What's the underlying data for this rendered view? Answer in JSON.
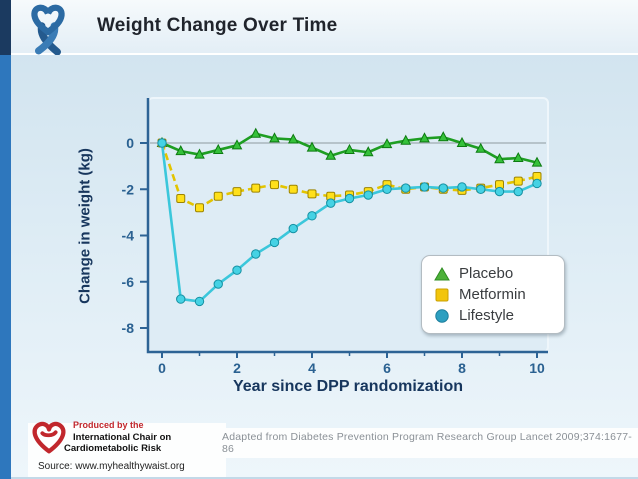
{
  "header": {
    "title": "Weight Change Over Time"
  },
  "chart_data": {
    "type": "line",
    "title": "Weight Change Over Time",
    "xlabel": "Year since DPP randomization",
    "ylabel": "Change in weight (kg)",
    "xlim": [
      0,
      10
    ],
    "ylim": [
      -8,
      0.8
    ],
    "x_ticks": [
      0,
      2,
      4,
      6,
      8,
      10
    ],
    "x_minor_ticks": [
      1,
      3,
      5,
      7,
      9
    ],
    "y_ticks": [
      0,
      -2,
      -4,
      -6,
      -8
    ],
    "grid": "zero-line-only",
    "legend_position": "bottom-right",
    "x": [
      0,
      0.5,
      1,
      1.5,
      2,
      2.5,
      3,
      3.5,
      4,
      4.5,
      5,
      5.5,
      6,
      6.5,
      7,
      7.5,
      8,
      8.5,
      9,
      9.5,
      10
    ],
    "series": [
      {
        "name": "Placebo",
        "marker": "triangle",
        "color": "#1e9e22",
        "marker_fill": "#35c13a",
        "marker_stroke": "#0c7a10",
        "dash": "",
        "values": [
          0,
          -0.35,
          -0.5,
          -0.3,
          -0.1,
          0.4,
          0.2,
          0.15,
          -0.2,
          -0.55,
          -0.3,
          -0.4,
          -0.05,
          0.1,
          0.2,
          0.25,
          0,
          -0.25,
          -0.7,
          -0.65,
          -0.85
        ]
      },
      {
        "name": "Metformin",
        "marker": "square",
        "color": "#e3c400",
        "marker_fill": "#ffe01a",
        "marker_stroke": "#9c8400",
        "dash": "7 4",
        "values": [
          0,
          -2.4,
          -2.8,
          -2.3,
          -2.1,
          -1.95,
          -1.8,
          -2.0,
          -2.2,
          -2.3,
          -2.25,
          -2.1,
          -1.8,
          -2.0,
          -1.9,
          -2.0,
          -2.05,
          -1.95,
          -1.8,
          -1.65,
          -1.45
        ]
      },
      {
        "name": "Lifestyle",
        "marker": "circle",
        "color": "#3bc7db",
        "marker_fill": "#45d2e4",
        "marker_stroke": "#1590a2",
        "dash": "",
        "values": [
          0,
          -6.75,
          -6.85,
          -6.1,
          -5.5,
          -4.8,
          -4.3,
          -3.7,
          -3.15,
          -2.6,
          -2.4,
          -2.25,
          -2.0,
          -1.95,
          -1.9,
          -1.95,
          -1.9,
          -2.0,
          -2.1,
          -2.1,
          -1.75
        ]
      }
    ]
  },
  "legend": {
    "entries": [
      {
        "icon": "green-triangle-icon",
        "label": "Placebo",
        "color": "#4db13a"
      },
      {
        "icon": "gold-square-icon",
        "label": "Metformin",
        "color": "#f2c50c"
      },
      {
        "icon": "teal-circle-icon",
        "label": "Lifestyle",
        "color": "#2d9fc0"
      }
    ]
  },
  "footer": {
    "produced_by": "Produced by the",
    "org_line1": "International Chair on",
    "org_line2": "Cardiometabolic Risk",
    "source": "Source: www.myhealthywaist.org",
    "citation": "Adapted from Diabetes Prevention Program Research Group Lancet 2009;374:1677-86"
  },
  "colors": {
    "accent_bar": "#2e77bd",
    "accent_bar_top": "#1b3a60",
    "axis": "#2d6395",
    "axis_text": "#17365d",
    "tick_text": "#2a6191",
    "plot_panel": "#deecf5",
    "logo_red": "#c1272d",
    "ribbon_blue": "#2b6aa3"
  }
}
